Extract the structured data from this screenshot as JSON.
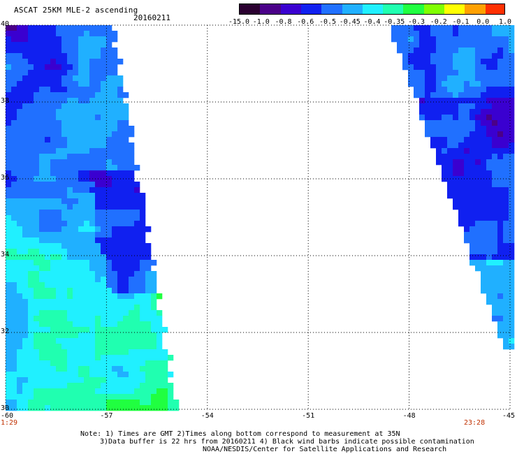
{
  "header": {
    "title": "ASCAT 25KM MLE-2 ascending",
    "date": "20160211"
  },
  "colorbar": {
    "labels": [
      "-15.0",
      "-1.0",
      "-0.8",
      "-0.6",
      "-0.5",
      "-0.45",
      "-0.4",
      "-0.35",
      "-0.3",
      "-0.2",
      "-0.1",
      "0.0",
      "1.0"
    ],
    "colors": [
      "#2a0030",
      "#4a0088",
      "#3a00d0",
      "#1020f0",
      "#2070ff",
      "#20b0ff",
      "#20f0ff",
      "#20ffb0",
      "#20ff40",
      "#80ff00",
      "#ffff00",
      "#ffa000",
      "#ff3000"
    ]
  },
  "axes": {
    "lat_labels": [
      "40",
      "38",
      "36",
      "34",
      "32",
      "30"
    ],
    "lon_labels": [
      "-60",
      "-57",
      "-54",
      "-51",
      "-48",
      "-45"
    ]
  },
  "times": {
    "left": "1:29",
    "right": "23:28"
  },
  "notes": {
    "line1": "Note: 1) Times are GMT 2)Times along bottom correspond to measurement at 35N",
    "line2": "3)Data buffer is 22 hrs from 20160211 4) Black wind barbs indicate possible contamination",
    "line3": "NOAA/NESDIS/Center for Satellite Applications and Research"
  }
}
